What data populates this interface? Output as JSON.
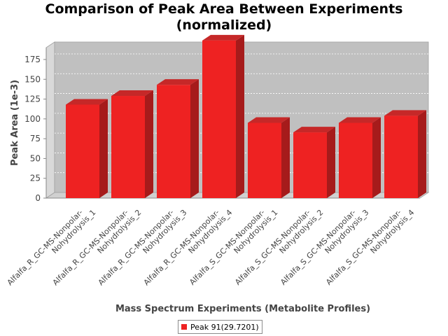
{
  "chart_data": {
    "type": "bar",
    "title_line1": "Comparison of Peak Area Between Experiments",
    "title_line2": "(normalized)",
    "xlabel": "Mass Spectrum Experiments (Metabolite Profiles)",
    "ylabel": "Peak Area (1e-3)",
    "categories": [
      [
        "Alfalfa_R_GC-MS-Nonpolar-",
        "Nohydrolysis_1"
      ],
      [
        "Alfalfa_R_GC-MS-Nonpolar-",
        "Nohydrolysis_2"
      ],
      [
        "Alfalfa_R_GC-MS-Nonpolar-",
        "Nohydrolysis_3"
      ],
      [
        "Alfalfa_R_GC-MS-Nonpolar-",
        "Nohydrolysis_4"
      ],
      [
        "Alfalfa_S_GC-MS-Nonpolar-",
        "Nohydrolysis_1"
      ],
      [
        "Alfalfa_S_GC-MS-Nonpolar-",
        "Nohydrolysis_2"
      ],
      [
        "Alfalfa_S_GC-MS-Nonpolar-",
        "Nohydrolysis_3"
      ],
      [
        "Alfalfa_S_GC-MS-Nonpolar-",
        "Nohydrolysis_4"
      ]
    ],
    "series": [
      {
        "name": "Peak 91(29.7201)",
        "color": "#ee2222",
        "values": [
          118,
          129,
          143,
          199,
          95,
          83,
          95,
          104
        ]
      }
    ],
    "ylim": [
      0,
      190
    ],
    "yticks": [
      0,
      25,
      50,
      75,
      100,
      125,
      150,
      175
    ],
    "grid": true,
    "legend_position": "bottom-center"
  }
}
